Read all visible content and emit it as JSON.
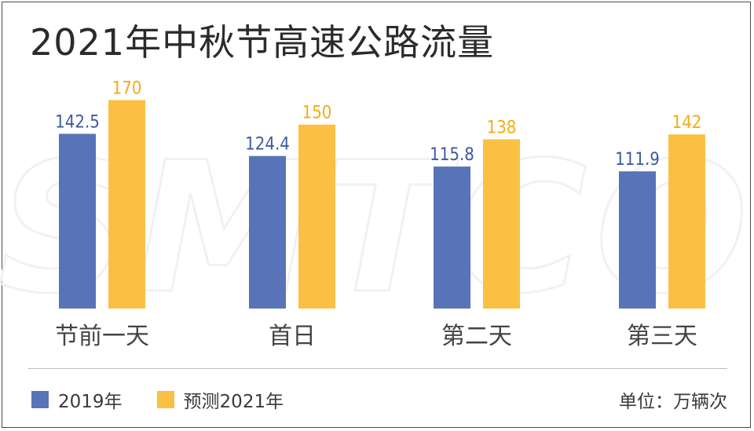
{
  "header": {
    "title": "2021年中秋节高速公路流量"
  },
  "watermark": {
    "text": "SMTCO"
  },
  "legend": {
    "unit": "单位：万辆次"
  },
  "colors": {
    "series_2019": "#5873b7",
    "series_2021": "#fbc043",
    "label_2019": "#3e5a9f",
    "label_2021": "#f3ab19"
  },
  "chart_data": {
    "type": "bar",
    "title": "2021年中秋节高速公路流量",
    "categories": [
      "节前一天",
      "首日",
      "第二天",
      "第三天"
    ],
    "series": [
      {
        "name": "2019年",
        "values": [
          142.5,
          124.4,
          115.8,
          111.9
        ]
      },
      {
        "name": "预测2021年",
        "values": [
          170,
          150,
          138,
          142
        ]
      }
    ],
    "value_labels": [
      [
        "142.5",
        "124.4",
        "115.8",
        "111.9"
      ],
      [
        "170",
        "150",
        "138",
        "142"
      ]
    ],
    "ylim": [
      0,
      178
    ],
    "grid": false,
    "legend_position": "bottom-left"
  }
}
